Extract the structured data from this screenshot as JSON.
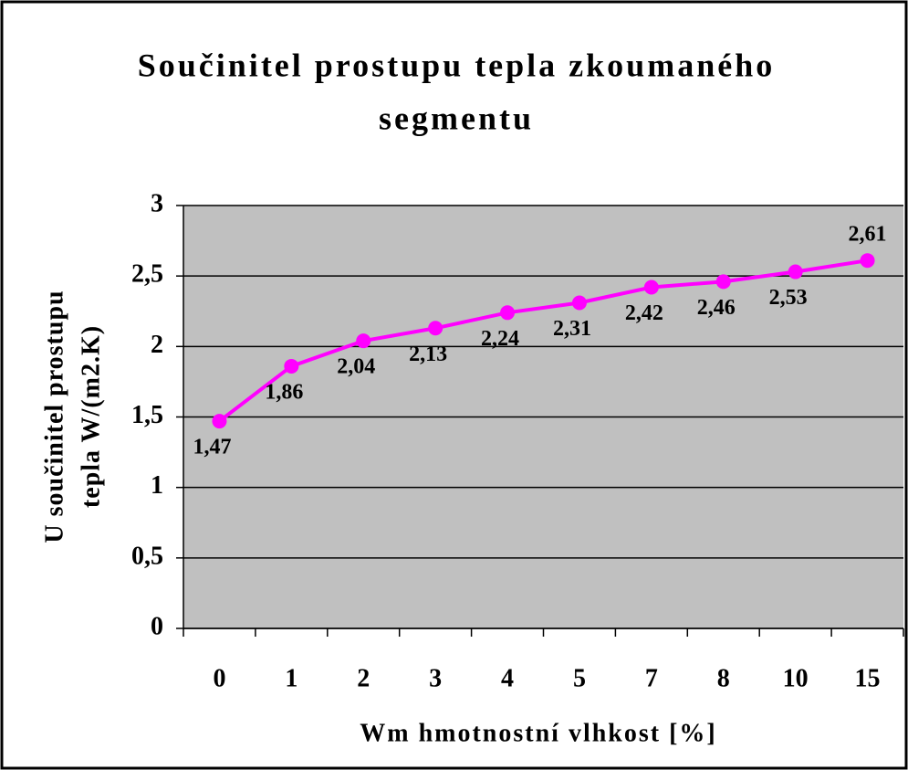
{
  "chart_data": {
    "type": "line",
    "title": [
      "Součinitel prostupu tepla zkoumaného",
      "segmentu"
    ],
    "x_label": "Wm hmotnostní vlhkost [%]",
    "y_label": [
      "U součinitel prostupu",
      "tepla W/(m2.K)"
    ],
    "categories": [
      "0",
      "1",
      "2",
      "3",
      "4",
      "5",
      "7",
      "8",
      "10",
      "15"
    ],
    "series": [
      {
        "name": "U",
        "color": "#ff00ff",
        "values": [
          1.47,
          1.86,
          2.04,
          2.13,
          2.24,
          2.31,
          2.42,
          2.46,
          2.53,
          2.61
        ],
        "value_labels": [
          "1,47",
          "1,86",
          "2,04",
          "2,13",
          "2,24",
          "2,31",
          "2,42",
          "2,46",
          "2,53",
          "2,61"
        ]
      }
    ],
    "ylim": [
      0,
      3
    ],
    "yticks": [
      0,
      {
        "value": 0.5,
        "label": "0,5"
      },
      1,
      {
        "value": 1.5,
        "label": "1,5"
      },
      2,
      {
        "value": 2.5,
        "label": "2,5"
      },
      3
    ],
    "grid": true,
    "plot_background": "#c0c0c0"
  }
}
